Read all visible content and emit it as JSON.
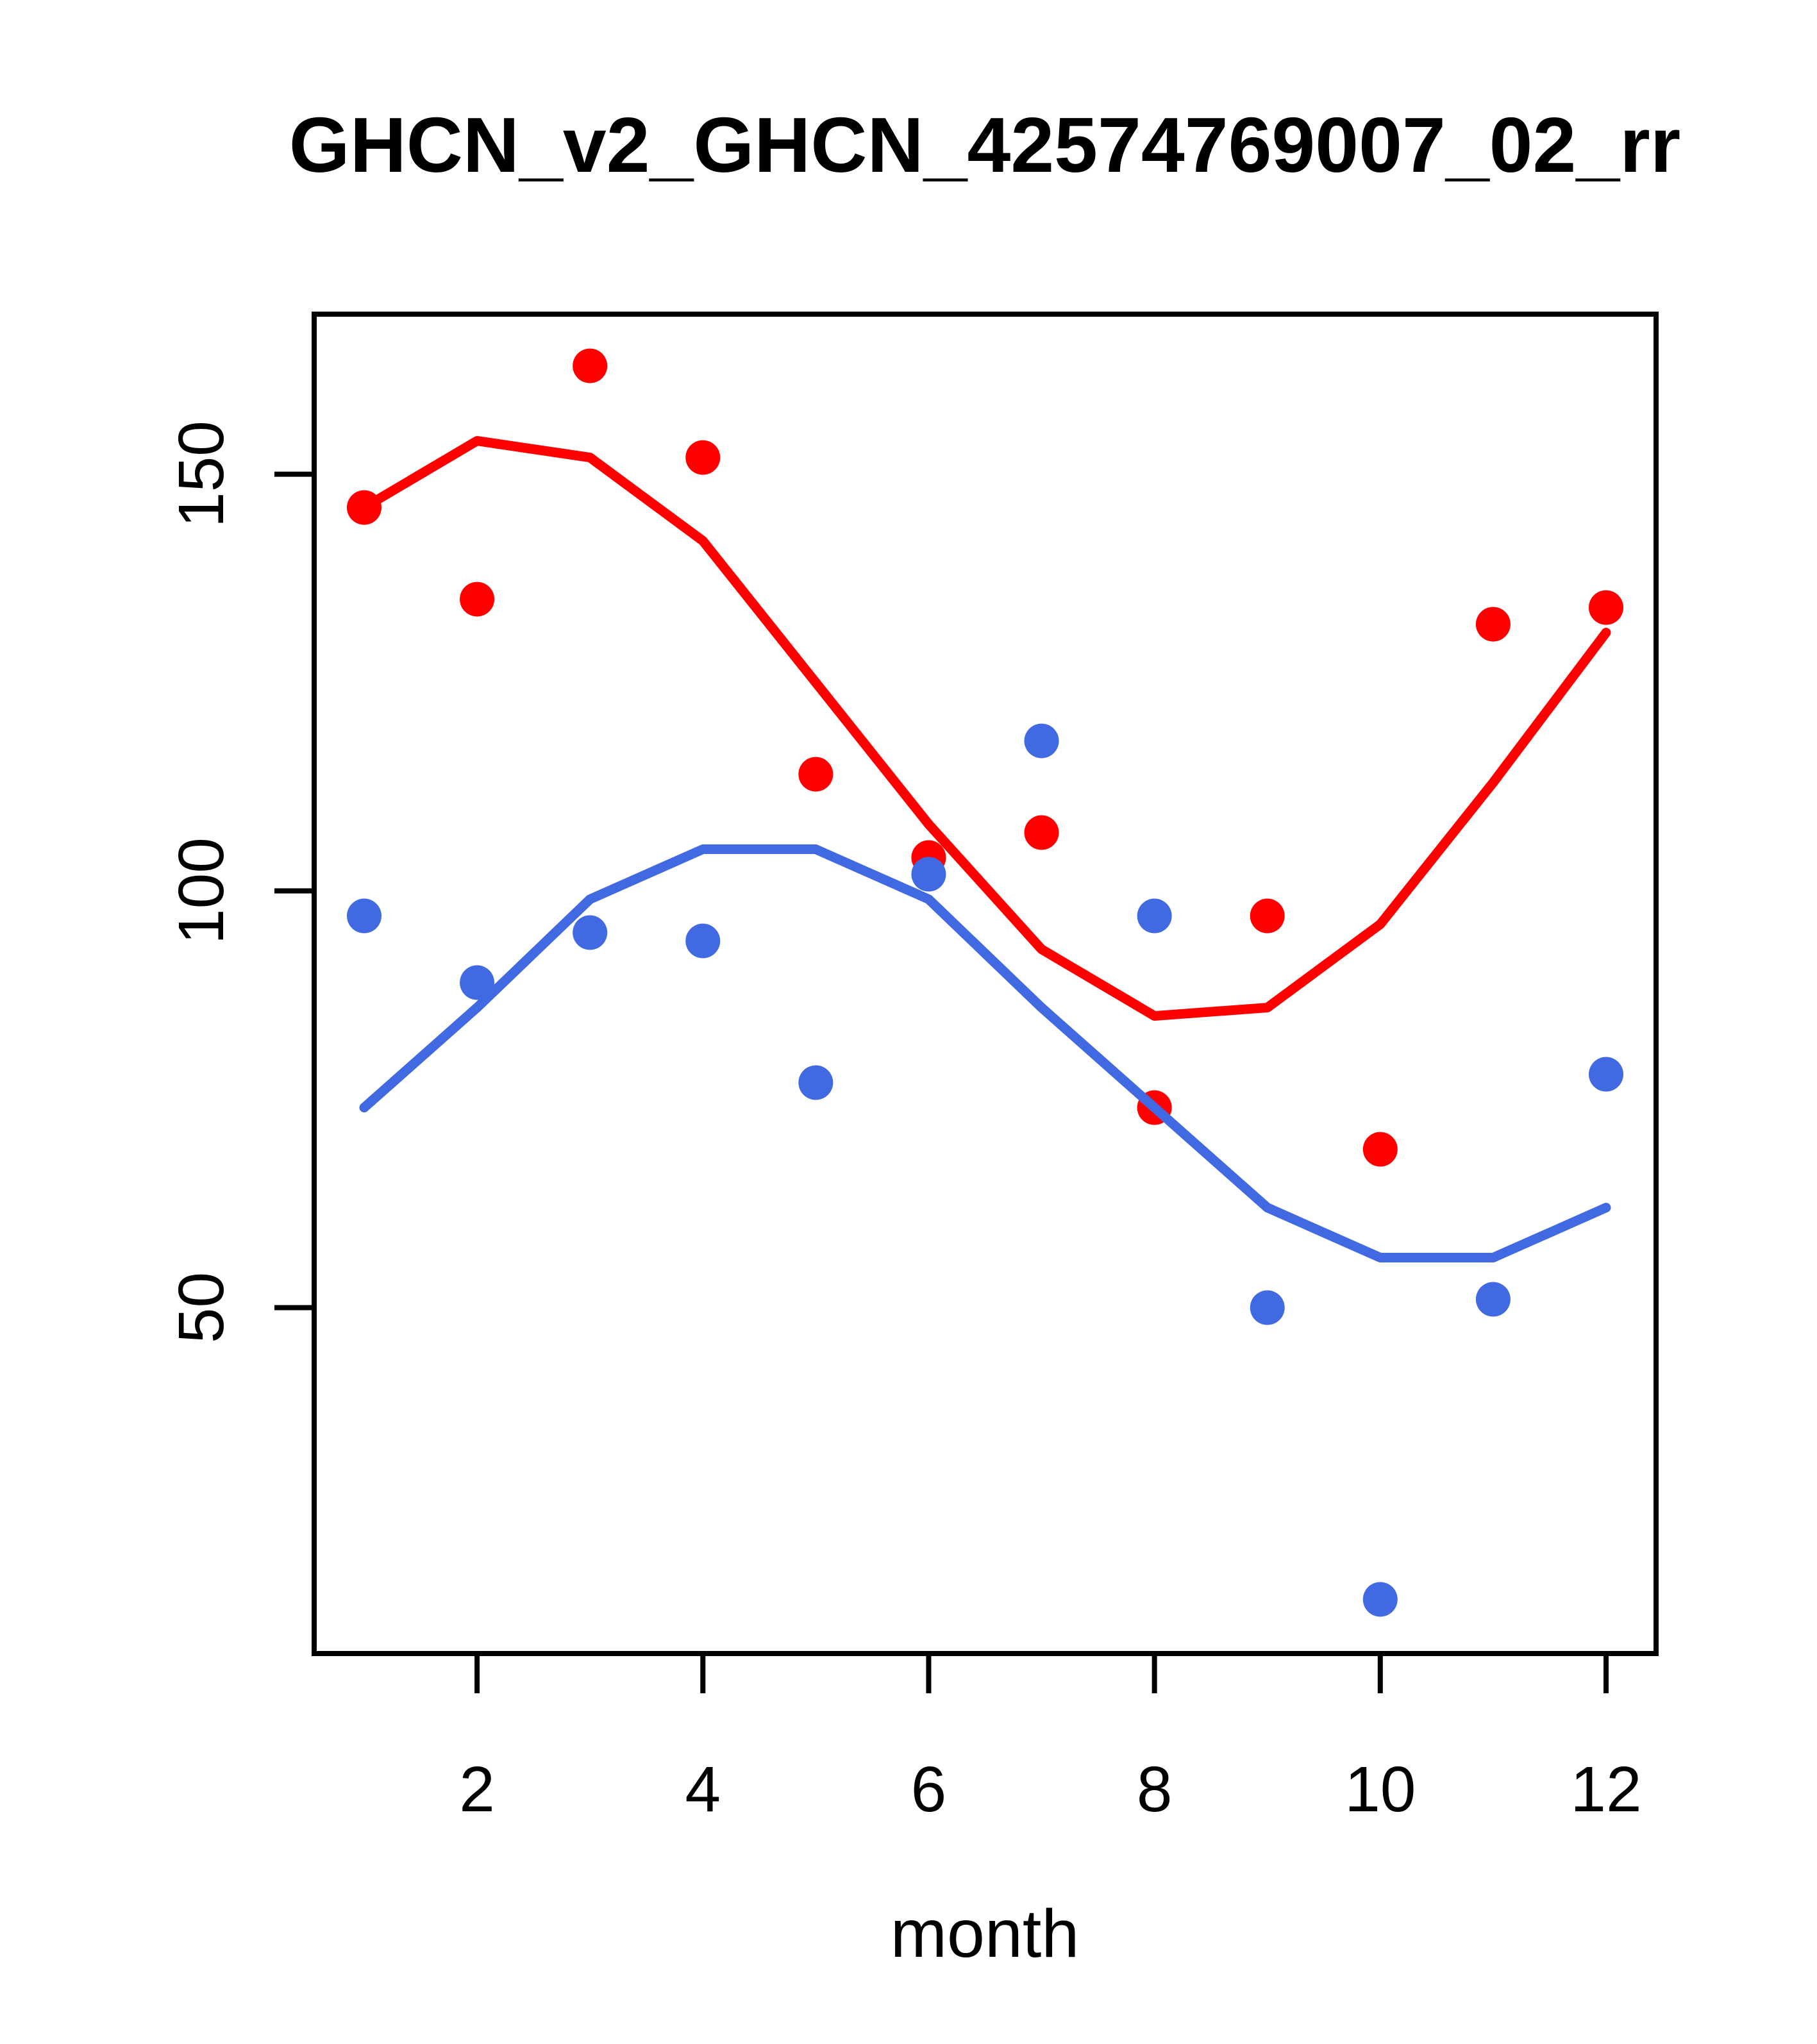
{
  "chart_data": {
    "type": "scatter",
    "title": "GHCN_v2_GHCN_42574769007_02_rr",
    "xlabel": "month",
    "ylabel": "",
    "grid": false,
    "legend_position": "none",
    "x_ticks": [
      2,
      4,
      6,
      8,
      10,
      12
    ],
    "y_ticks": [
      50,
      100,
      150
    ],
    "xlim": [
      0.557,
      12.443
    ],
    "ylim": [
      8.5,
      169.2
    ],
    "x": [
      1,
      2,
      3,
      4,
      5,
      6,
      7,
      8,
      9,
      10,
      11,
      12
    ],
    "colors": {
      "red": "#FF0000",
      "blue": "#4169E1"
    },
    "series": [
      {
        "name": "red-points",
        "type": "scatter",
        "color": "#FF0000",
        "values": [
          146,
          135,
          163,
          152,
          114,
          104,
          107,
          74,
          97,
          69,
          132,
          134
        ]
      },
      {
        "name": "blue-points",
        "type": "scatter",
        "color": "#4169E1",
        "values": [
          97,
          89,
          95,
          94,
          77,
          102,
          118,
          97,
          50,
          15,
          51,
          78
        ]
      },
      {
        "name": "red-smooth-line",
        "type": "line",
        "color": "#FF0000",
        "values": [
          146,
          154,
          152,
          142,
          125,
          108,
          93,
          85,
          86,
          96,
          113,
          131
        ]
      },
      {
        "name": "blue-smooth-line",
        "type": "line",
        "color": "#4169E1",
        "values": [
          74,
          86,
          99,
          105,
          105,
          99,
          86,
          74,
          62,
          56,
          56,
          62
        ]
      }
    ]
  }
}
